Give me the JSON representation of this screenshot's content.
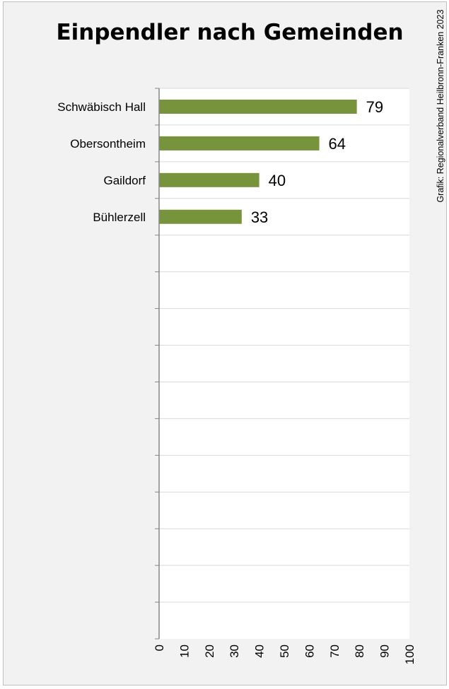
{
  "chart_data": {
    "type": "bar",
    "orientation": "horizontal",
    "title": "Einpendler nach Gemeinden",
    "credit": "Grafik: Regionalverband Heilbronn-Franken 2023",
    "categories": [
      "Schwäbisch Hall",
      "Obersontheim",
      "Gaildorf",
      "Bühlerzell"
    ],
    "values": [
      79,
      64,
      40,
      33
    ],
    "slot_count": 15,
    "xlim": [
      0,
      100
    ],
    "xticks": [
      0,
      10,
      20,
      30,
      40,
      50,
      60,
      70,
      80,
      90,
      100
    ],
    "xlabel": "",
    "ylabel": "",
    "grid": true,
    "legend": "none",
    "data_labels": true,
    "bar_color": "#77933c",
    "plot_background": "#ffffff",
    "chart_background": "#f2f2f2",
    "gridline_color": "#d9d9d9",
    "axis_color": "#868686"
  }
}
